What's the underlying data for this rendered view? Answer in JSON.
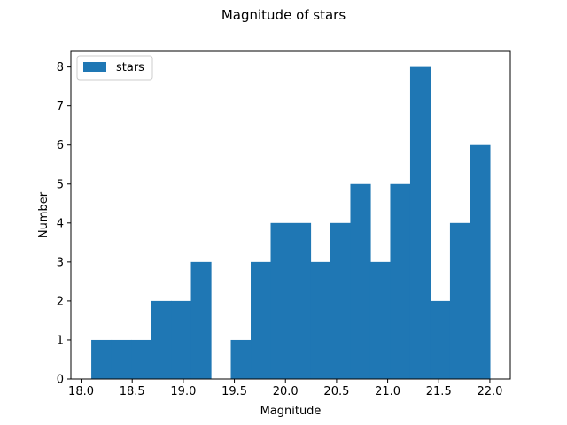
{
  "chart_data": {
    "type": "bar",
    "title": "Magnitude of stars",
    "xlabel": "Magnitude",
    "ylabel": "Number",
    "xlim": [
      17.9,
      22.2
    ],
    "ylim": [
      0,
      8.4
    ],
    "xticks": [
      "18.0",
      "18.5",
      "19.0",
      "19.5",
      "20.0",
      "20.5",
      "21.0",
      "21.5",
      "22.0"
    ],
    "xtick_values": [
      18.0,
      18.5,
      19.0,
      19.5,
      20.0,
      20.5,
      21.0,
      21.5,
      22.0
    ],
    "yticks": [
      "0",
      "1",
      "2",
      "3",
      "4",
      "5",
      "6",
      "7",
      "8"
    ],
    "ytick_values": [
      0,
      1,
      2,
      3,
      4,
      5,
      6,
      7,
      8
    ],
    "bin_start": 18.1,
    "bin_end": 22.0,
    "values": [
      1,
      1,
      1,
      2,
      2,
      3,
      0,
      1,
      3,
      4,
      4,
      3,
      4,
      5,
      3,
      5,
      8,
      2,
      4,
      6
    ],
    "color": "#1f77b4",
    "legend": {
      "position": "upper-left",
      "entries": [
        "stars"
      ]
    },
    "grid": false
  }
}
